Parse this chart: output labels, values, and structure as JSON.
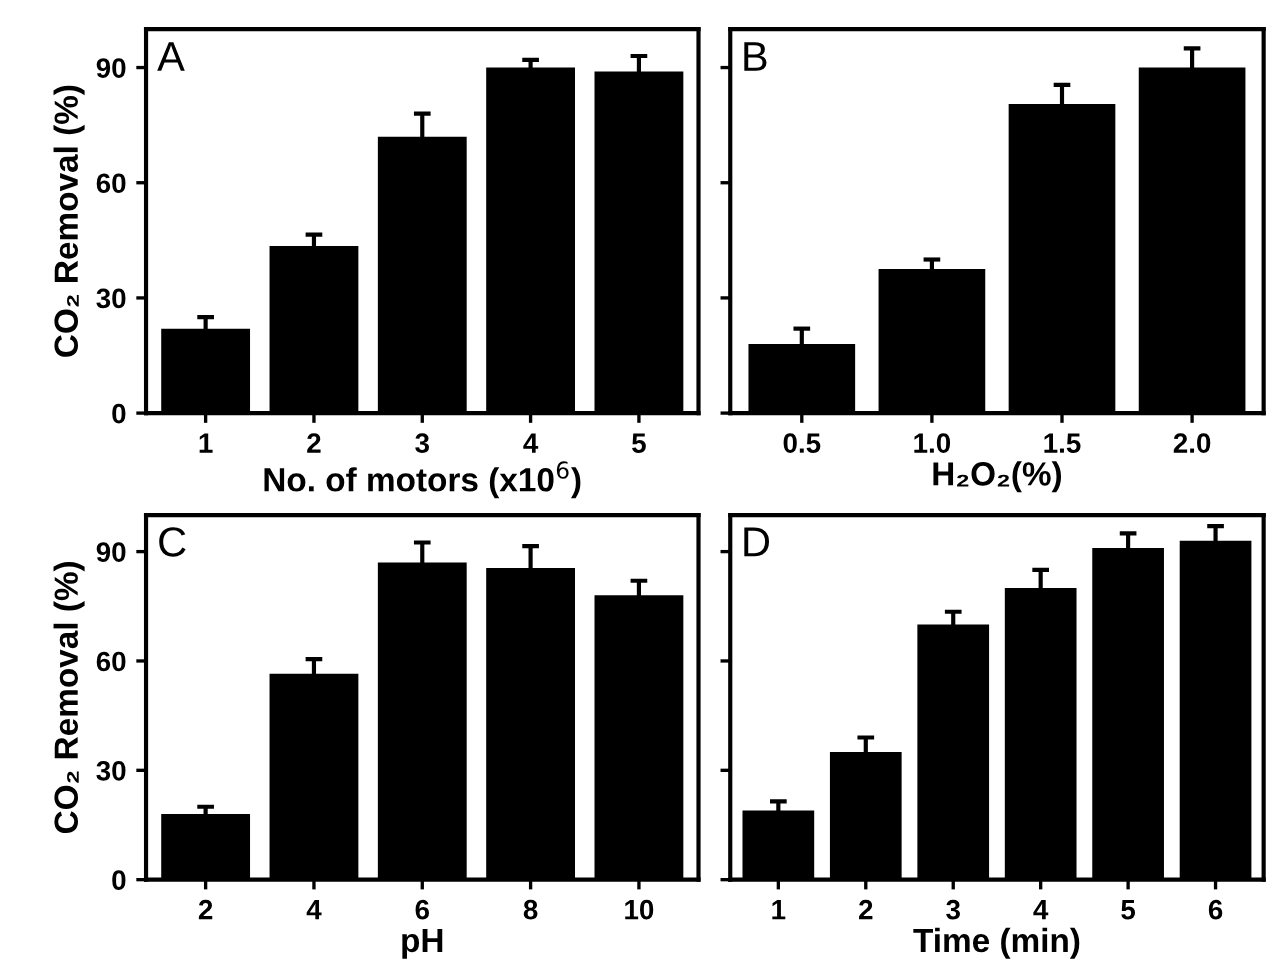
{
  "chart_data": [
    {
      "type": "bar",
      "ylabel": "CO₂ Removal (%)",
      "xlabel": "No. of motors (x10$^{6}$)",
      "annotations": [
        "A"
      ],
      "categories": [
        "1",
        "2",
        "3",
        "4",
        "5"
      ],
      "values": [
        22,
        43.5,
        72,
        90,
        89
      ],
      "errors": [
        3,
        3,
        6,
        2,
        4
      ],
      "color": "#000000",
      "ylim": [
        0,
        100
      ],
      "yticks": [
        0,
        30,
        60,
        90
      ]
    },
    {
      "type": "bar",
      "xlabel": "H₂O₂(%)",
      "annotations": [
        "B"
      ],
      "categories": [
        "0.5",
        "1.0",
        "1.5",
        "2.0"
      ],
      "values": [
        18,
        37.5,
        80.5,
        90
      ],
      "errors": [
        4,
        2.5,
        5,
        5
      ],
      "color": "#000000",
      "ylim": [
        0,
        100
      ],
      "yticks": [
        {
          "value": 0,
          "label": null
        },
        {
          "value": 30,
          "label": null
        },
        {
          "value": 60,
          "label": null
        },
        {
          "value": 90,
          "label": null
        }
      ],
      "tick_labels": "x"
    },
    {
      "type": "bar",
      "ylabel": "CO₂ Removal (%)",
      "xlabel": "pH",
      "annotations": [
        "C"
      ],
      "categories": [
        "2",
        "4",
        "6",
        "8",
        "10"
      ],
      "values": [
        18,
        56.5,
        87,
        85.5,
        78
      ],
      "errors": [
        2,
        4,
        5.5,
        6,
        4
      ],
      "color": "#000000",
      "ylim": [
        0,
        100
      ],
      "yticks": [
        0,
        30,
        60,
        90
      ]
    },
    {
      "type": "bar",
      "xlabel": "Time (min)",
      "annotations": [
        "D"
      ],
      "categories": [
        "1",
        "2",
        "3",
        "4",
        "5",
        "6"
      ],
      "values": [
        19,
        35,
        70,
        80,
        91,
        93
      ],
      "errors": [
        2.5,
        4,
        3.5,
        5,
        4,
        4
      ],
      "color": "#000000",
      "ylim": [
        0,
        100
      ],
      "yticks": [
        {
          "value": 0,
          "label": null
        },
        {
          "value": 30,
          "label": null
        },
        {
          "value": 60,
          "label": null
        },
        {
          "value": 90,
          "label": null
        }
      ],
      "tick_labels": "x"
    }
  ]
}
